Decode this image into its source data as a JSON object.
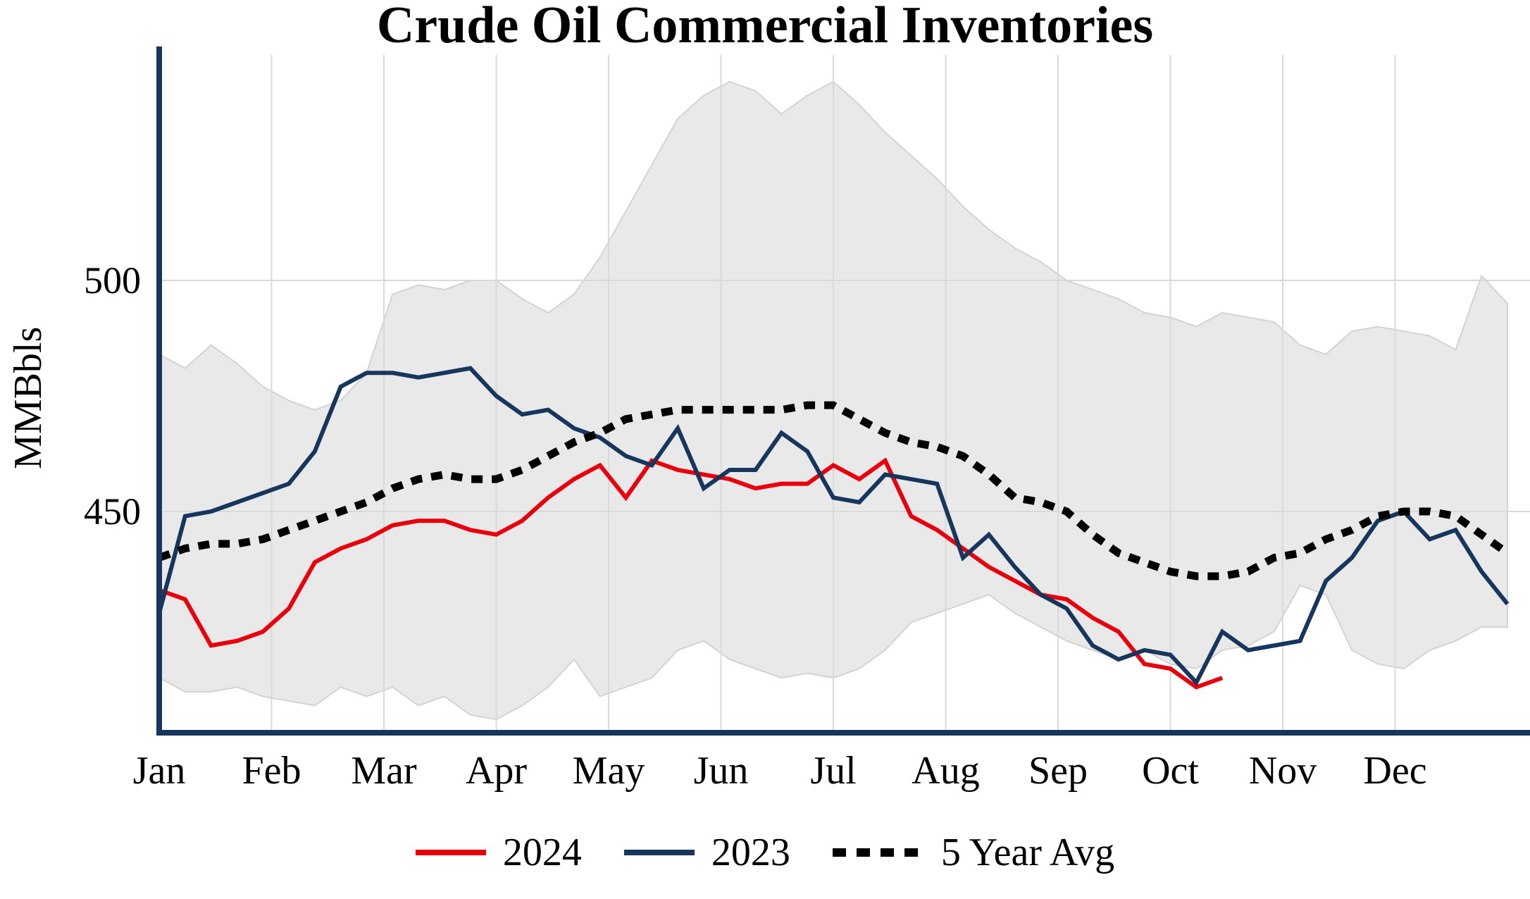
{
  "title": "Crude Oil Commercial Inventories",
  "ylabel": "MMBbls",
  "legend": {
    "items": [
      {
        "label": "2024",
        "color": "#e8000d",
        "style": "solid"
      },
      {
        "label": "2023",
        "color": "#17365d",
        "style": "solid"
      },
      {
        "label": "5 Year Avg",
        "color": "#000000",
        "style": "dotted"
      }
    ]
  },
  "chart_data": {
    "type": "line",
    "title": "Crude Oil Commercial Inventories",
    "ylabel": "MMBbls",
    "x_unit": "weekly, weeks 0-52 spanning Jan-Dec",
    "x_tick_labels": [
      "Jan",
      "Feb",
      "Mar",
      "Apr",
      "May",
      "Jun",
      "Jul",
      "Aug",
      "Sep",
      "Oct",
      "Nov",
      "Dec"
    ],
    "yticks": [
      450,
      500
    ],
    "ylim": [
      401,
      548
    ],
    "grid": true,
    "grid_color": "#d9d9d9",
    "axis_color": "#17365d",
    "legend_position": "bottom",
    "band": {
      "description": "5-year min-max range (shaded)",
      "fill": "#e9e9e9",
      "edge": "#d3d3d3",
      "upper": [
        484,
        481,
        486,
        482,
        477,
        474,
        472,
        474,
        480,
        497,
        499,
        498,
        500,
        500,
        496,
        493,
        497,
        505,
        515,
        525,
        535,
        540,
        543,
        541,
        536,
        540,
        543,
        538,
        532,
        527,
        522,
        516,
        511,
        507,
        504,
        500,
        498,
        496,
        493,
        492,
        490,
        493,
        492,
        491,
        486,
        484,
        489,
        490,
        489,
        488,
        485,
        501,
        495
      ],
      "lower": [
        414,
        411,
        411,
        412,
        410,
        409,
        408,
        412,
        410,
        412,
        408,
        410,
        406,
        405,
        408,
        412,
        418,
        410,
        412,
        414,
        420,
        422,
        418,
        416,
        414,
        415,
        414,
        416,
        420,
        426,
        428,
        430,
        432,
        428,
        425,
        422,
        420,
        418,
        420,
        417,
        416,
        420,
        421,
        424,
        434,
        432,
        420,
        417,
        416,
        420,
        422,
        425,
        425
      ]
    },
    "series": [
      {
        "name": "2024",
        "color": "#e8000d",
        "width": 6,
        "dash": null,
        "start_week": 0,
        "values": [
          433,
          431,
          421,
          422,
          424,
          429,
          439,
          442,
          444,
          447,
          448,
          448,
          446,
          445,
          448,
          453,
          457,
          460,
          453,
          461,
          459,
          458,
          457,
          455,
          456,
          456,
          460,
          457,
          461,
          449,
          446,
          442,
          438,
          435,
          432,
          431,
          427,
          424,
          417,
          416,
          412,
          414
        ]
      },
      {
        "name": "2023",
        "color": "#17365d",
        "width": 6,
        "dash": null,
        "start_week": 0,
        "values": [
          428,
          449,
          450,
          452,
          454,
          456,
          463,
          477,
          480,
          480,
          479,
          480,
          481,
          475,
          471,
          472,
          468,
          466,
          462,
          460,
          468,
          455,
          459,
          459,
          467,
          463,
          453,
          452,
          458,
          457,
          456,
          440,
          445,
          438,
          432,
          429,
          421,
          418,
          420,
          419,
          413,
          424,
          420,
          421,
          422,
          435,
          440,
          448,
          450,
          444,
          446,
          437,
          430
        ]
      },
      {
        "name": "5 Year Avg",
        "color": "#000000",
        "width": 11,
        "dash": [
          16,
          13
        ],
        "start_week": 0,
        "values": [
          440,
          442,
          443,
          443,
          444,
          446,
          448,
          450,
          452,
          455,
          457,
          458,
          457,
          457,
          459,
          462,
          465,
          467,
          470,
          471,
          472,
          472,
          472,
          472,
          472,
          473,
          473,
          470,
          467,
          465,
          464,
          462,
          458,
          453,
          452,
          450,
          445,
          441,
          439,
          437,
          436,
          436,
          437,
          440,
          441,
          444,
          446,
          449,
          450,
          450,
          449,
          445,
          441
        ]
      }
    ]
  }
}
